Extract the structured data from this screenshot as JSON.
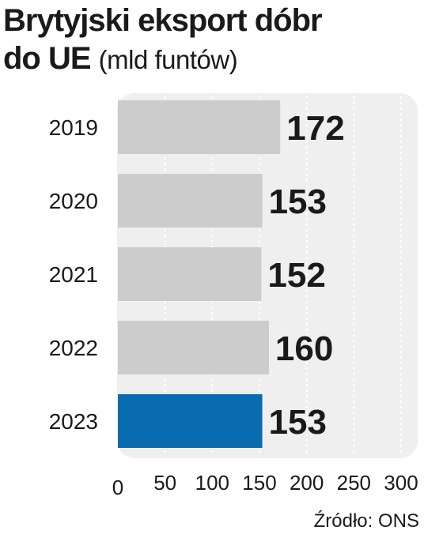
{
  "title": {
    "main": "Brytyjski eksport dóbr",
    "line2": "do UE",
    "unit": "(mld funtów)"
  },
  "source": "Źródło: ONS",
  "colors": {
    "bar": "#cccccc",
    "highlight": "#0a6cb0",
    "panel": "#efefef",
    "label_inside": "#ffffff",
    "label_outside": "#1a1a1a",
    "grid": "#ffffff"
  },
  "chart_data": {
    "type": "bar",
    "orientation": "horizontal",
    "categories": [
      "2019",
      "2020",
      "2021",
      "2022",
      "2023"
    ],
    "values": [
      172,
      153,
      152,
      160,
      153
    ],
    "highlight_category": "2023",
    "xlim": [
      0,
      300
    ],
    "xticks": [
      "0",
      "50",
      "100",
      "150",
      "200",
      "250",
      "300"
    ],
    "grid": true,
    "data_labels": [
      "172",
      "153",
      "152",
      "160",
      "153"
    ]
  }
}
